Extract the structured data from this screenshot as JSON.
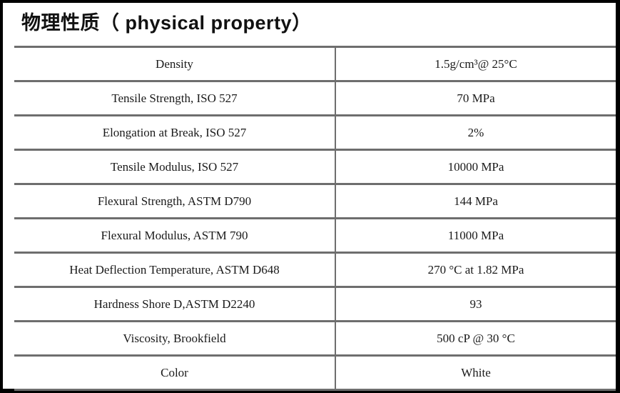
{
  "title": "物理性质（ physical property）",
  "colors": {
    "frame": "#000000",
    "grid_line": "#6e6e6e",
    "text": "#1a1a1a",
    "background": "#ffffff"
  },
  "table": {
    "columns": [
      "property",
      "value"
    ],
    "rows": [
      {
        "property": "Density",
        "value": "1.5g/cm³@ 25°C"
      },
      {
        "property": "Tensile Strength, ISO 527",
        "value": "70 MPa"
      },
      {
        "property": "Elongation at Break, ISO 527",
        "value": "2%"
      },
      {
        "property": "Tensile Modulus, ISO 527",
        "value": "10000 MPa"
      },
      {
        "property": "Flexural Strength, ASTM D790",
        "value": "144 MPa"
      },
      {
        "property": "Flexural Modulus, ASTM 790",
        "value": "11000 MPa"
      },
      {
        "property": "Heat Deflection Temperature, ASTM D648",
        "value": "270 °C at 1.82 MPa"
      },
      {
        "property": "Hardness Shore D,ASTM D2240",
        "value": "93"
      },
      {
        "property": "Viscosity, Brookfield",
        "value": "500 cP @ 30 °C"
      },
      {
        "property": "Color",
        "value": "White"
      }
    ]
  }
}
